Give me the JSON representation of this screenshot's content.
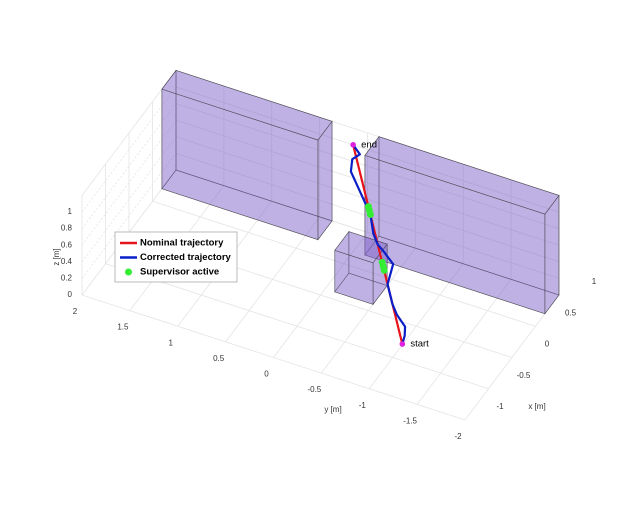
{
  "chart_data": {
    "type": "line3d",
    "xlabel": "x [m]",
    "ylabel": "y [m]",
    "zlabel": "z [m]",
    "xlim": [
      -1,
      1
    ],
    "ylim": [
      -2,
      2
    ],
    "zlim": [
      0,
      1.2
    ],
    "xticks": [
      -1,
      -0.5,
      0,
      0.5,
      1
    ],
    "yticks": [
      -2,
      -1.5,
      -1,
      -0.5,
      0,
      0.5,
      1,
      1.5,
      2
    ],
    "zticks": [
      0,
      0.2,
      0.4,
      0.6,
      0.8,
      1
    ],
    "grid": true,
    "obstacle_color": "#7b5cc4",
    "obstacles": [
      {
        "x": [
          0.7,
          1.0
        ],
        "y": [
          0.37,
          2
        ],
        "z": [
          0,
          1.2
        ]
      },
      {
        "x": [
          0.7,
          1.0
        ],
        "y": [
          -2,
          -0.12
        ],
        "z": [
          0,
          1.2
        ]
      },
      {
        "x": [
          0.1,
          0.4
        ],
        "y": [
          -0.5,
          -0.1
        ],
        "z": [
          0,
          0.5
        ]
      }
    ],
    "series": [
      {
        "name": "Nominal trajectory",
        "color": "#e8141c",
        "mode": "line",
        "x": [
          -0.5,
          1.0
        ],
        "y": [
          -1.1,
          0.15
        ],
        "z": [
          0.2,
          1.0
        ]
      },
      {
        "name": "Corrected trajectory",
        "color": "#0a1fc8",
        "mode": "line",
        "x": [
          -0.5,
          -0.425,
          -0.35,
          -0.275,
          -0.2,
          -0.05,
          0.07,
          0.13,
          0.205,
          0.25,
          0.325,
          0.475,
          0.625,
          0.775,
          0.88,
          0.94,
          1.0
        ],
        "y": [
          -1.1,
          -1.088,
          -1.055,
          -0.933,
          -0.85,
          -0.725,
          -0.705,
          -0.695,
          -0.563,
          -0.475,
          -0.393,
          -0.288,
          -0.113,
          0.063,
          0.1,
          0.05,
          0.15
        ],
        "z": [
          0.2,
          0.24,
          0.28,
          0.32,
          0.36,
          0.44,
          0.504,
          0.536,
          0.576,
          0.6,
          0.64,
          0.72,
          0.8,
          0.88,
          0.936,
          0.968,
          1.0
        ]
      },
      {
        "name": "Supervisor active",
        "color": "#33ee33",
        "mode": "markers",
        "x": [
          0.055,
          0.085,
          0.115,
          0.475,
          0.505,
          0.535
        ],
        "y": [
          -0.638,
          -0.613,
          -0.588,
          -0.288,
          -0.263,
          -0.238
        ],
        "z": [
          0.496,
          0.512,
          0.528,
          0.72,
          0.736,
          0.752
        ]
      }
    ],
    "annotations": [
      {
        "text": "start",
        "color": "#e020e0",
        "x": -0.5,
        "y": -1.1,
        "z": 0.2
      },
      {
        "text": "end",
        "color": "#e020e0",
        "x": 1.0,
        "y": 0.15,
        "z": 1.0
      }
    ]
  }
}
